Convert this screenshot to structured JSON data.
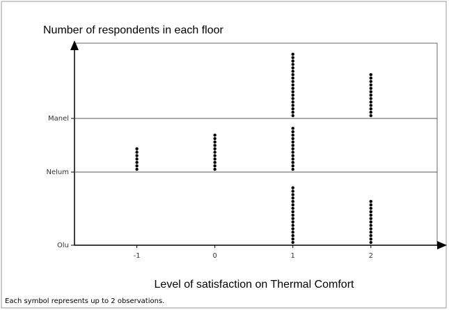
{
  "chart_data": {
    "type": "dotplot",
    "title": "Number of respondents in each floor",
    "x_label": "Level of satisfaction on Thermal Comfort",
    "note": "Each symbol represents up to 2 observations.",
    "x": [
      -1,
      0,
      1,
      2
    ],
    "xlim": [
      -1.8,
      2.85
    ],
    "xticks": [
      -1,
      0,
      1,
      2
    ],
    "color": "#000000",
    "series": [
      {
        "name": "Olu",
        "values": [
          0,
          0,
          17,
          13
        ]
      },
      {
        "name": "Nelum",
        "values": [
          7,
          11,
          13,
          0
        ]
      },
      {
        "name": "Manel",
        "values": [
          0,
          0,
          19,
          13
        ]
      }
    ]
  }
}
